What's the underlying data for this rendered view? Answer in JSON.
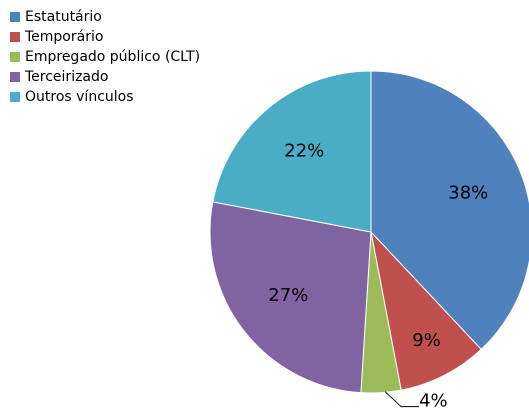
{
  "chart_data": {
    "type": "pie",
    "categories": [
      "Estatutário",
      "Temporário",
      "Empregado público (CLT)",
      "Terceirizado",
      "Outros vínculos"
    ],
    "values": [
      38,
      9,
      4,
      27,
      22
    ],
    "value_labels": [
      "38%",
      "9%",
      "4%",
      "27%",
      "22%"
    ],
    "colors": [
      "#4f81bd",
      "#c0504d",
      "#9bbb59",
      "#8064a2",
      "#4bacc6"
    ],
    "legend": "top-left"
  }
}
